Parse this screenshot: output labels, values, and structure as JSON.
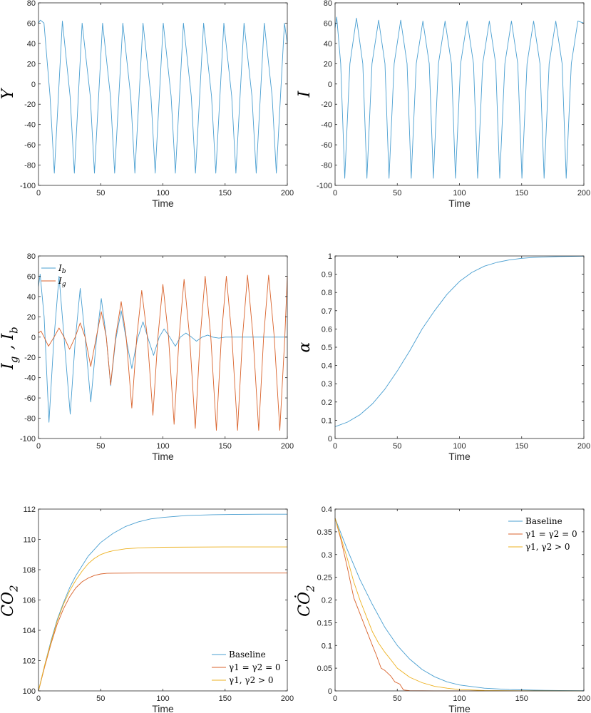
{
  "colors": {
    "blue": "#4a9fd1",
    "orange": "#d9622b",
    "yellow": "#edb120",
    "axis": "#262626"
  },
  "chart_data": [
    {
      "id": "panel-y",
      "type": "line",
      "ylabel": "Y",
      "xlabel": "Time",
      "xlim": [
        0,
        200
      ],
      "ylim": [
        -100,
        80
      ],
      "xticks": [
        0,
        50,
        100,
        150,
        200
      ],
      "yticks": [
        -100,
        -80,
        -60,
        -40,
        -20,
        0,
        20,
        40,
        60,
        80
      ],
      "grid": false,
      "series": [
        {
          "color": "blue",
          "x": [
            0,
            1.5,
            4.4,
            9.3,
            12.7,
            19.2,
            25.4,
            28.8,
            35.1,
            41.6,
            45.0,
            51.5,
            57.8,
            61.2,
            67.8,
            74.1,
            77.5,
            84.0,
            90.4,
            93.8,
            100.3,
            106.6,
            110.0,
            116.5,
            122.8,
            126.2,
            132.7,
            139.1,
            142.5,
            149.0,
            155.3,
            158.7,
            165.2,
            171.6,
            175.0,
            181.5,
            187.8,
            191.2,
            197.7,
            200
          ],
          "y": [
            60,
            63,
            60,
            -12,
            -88,
            62,
            -12,
            -88,
            60,
            -12,
            -88,
            60,
            -12,
            -88,
            60,
            -12,
            -88,
            60,
            -12,
            -88,
            60,
            -12,
            -88,
            60,
            -12,
            -88,
            60,
            -12,
            -88,
            60,
            -12,
            -88,
            60,
            -12,
            -88,
            60,
            -12,
            -88,
            60,
            40
          ]
        }
      ]
    },
    {
      "id": "panel-i",
      "type": "line",
      "ylabel": "I",
      "xlabel": "Time",
      "xlim": [
        0,
        200
      ],
      "ylim": [
        -100,
        80
      ],
      "xticks": [
        0,
        50,
        100,
        150,
        200
      ],
      "yticks": [
        -100,
        -80,
        -60,
        -40,
        -20,
        0,
        20,
        40,
        60,
        80
      ],
      "grid": false,
      "series": [
        {
          "color": "blue",
          "x": [
            0,
            1.3,
            4.5,
            7.8,
            11.9,
            17.2,
            22.3,
            25.6,
            29.7,
            35.0,
            40.1,
            43.4,
            47.5,
            52.8,
            57.9,
            61.2,
            65.3,
            70.6,
            75.7,
            79.0,
            83.1,
            88.4,
            93.5,
            96.8,
            100.9,
            106.2,
            111.3,
            114.6,
            118.7,
            124.0,
            129.1,
            132.4,
            136.5,
            141.8,
            146.9,
            150.2,
            154.3,
            159.6,
            164.7,
            168.0,
            172.1,
            177.4,
            182.5,
            185.8,
            189.9,
            195.2,
            200
          ],
          "y": [
            55,
            66,
            20,
            -93,
            20,
            65,
            20,
            -93,
            20,
            63,
            20,
            -93,
            20,
            63,
            20,
            -93,
            20,
            62,
            20,
            -93,
            20,
            62,
            20,
            -93,
            20,
            62,
            20,
            -93,
            20,
            62,
            20,
            -93,
            20,
            62,
            20,
            -93,
            20,
            62,
            20,
            -93,
            20,
            62,
            20,
            -93,
            20,
            62,
            60
          ]
        }
      ]
    },
    {
      "id": "panel-igib",
      "type": "line",
      "ylabel": "I_g , I_b",
      "xlabel": "Time",
      "xlim": [
        0,
        200
      ],
      "ylim": [
        -100,
        80
      ],
      "xticks": [
        0,
        50,
        100,
        150,
        200
      ],
      "yticks": [
        -100,
        -80,
        -60,
        -40,
        -20,
        0,
        20,
        40,
        60,
        80
      ],
      "grid": false,
      "legend": {
        "location": "top-left",
        "entries": [
          {
            "label": "I",
            "sub": "b",
            "color": "blue"
          },
          {
            "label": "I",
            "sub": "g",
            "color": "orange"
          }
        ]
      },
      "series": [
        {
          "name": "I_b",
          "color": "blue",
          "x": [
            0,
            1.3,
            4.5,
            8.4,
            12.2,
            16.5,
            20.5,
            25.5,
            29.5,
            33.5,
            37.5,
            42.0,
            46.5,
            50.5,
            54.5,
            58.0,
            62.0,
            66.5,
            70.5,
            75.0,
            79.5,
            84.0,
            88.0,
            92.5,
            97.0,
            101.0,
            105.5,
            110.0,
            114.0,
            118.5,
            123.0,
            127.0,
            131.5,
            136.0,
            140.0,
            145.0,
            150.0,
            160.0,
            180.0,
            200.0
          ],
          "y": [
            50,
            62,
            20,
            -84,
            -5,
            60,
            0,
            -76,
            -4,
            48,
            0,
            -64,
            -4,
            38,
            0,
            -48,
            -3,
            26,
            -2,
            -31,
            -2,
            15,
            -1,
            -18,
            0,
            8,
            0,
            -9,
            0,
            4,
            0,
            -4,
            0,
            2,
            0,
            -1,
            0,
            0,
            0,
            0
          ]
        },
        {
          "name": "I_g",
          "color": "orange",
          "x": [
            0,
            2.0,
            4.5,
            8.0,
            12.5,
            16.5,
            20.5,
            25.0,
            29.5,
            33.5,
            37.5,
            42.0,
            46.5,
            50.5,
            54.5,
            58.0,
            62.0,
            66.5,
            70.5,
            75.0,
            79.0,
            83.0,
            87.5,
            92.0,
            96.0,
            100.0,
            104.5,
            109.0,
            113.0,
            117.0,
            121.5,
            126.0,
            130.0,
            134.0,
            138.5,
            143.0,
            147.0,
            151.0,
            155.5,
            160.0,
            164.0,
            168.0,
            172.5,
            177.0,
            181.0,
            185.0,
            189.5,
            194.0,
            198.0,
            200.0
          ],
          "y": [
            4,
            6,
            0,
            -9,
            0,
            9,
            0,
            -12,
            0,
            14,
            0,
            -29,
            0,
            25,
            0,
            -47,
            0,
            35,
            0,
            -70,
            0,
            46,
            0,
            -77,
            0,
            52,
            0,
            -86,
            0,
            57,
            0,
            -90,
            0,
            60,
            0,
            -92,
            0,
            60,
            0,
            -92,
            0,
            61,
            0,
            -92,
            0,
            61,
            0,
            -92,
            0,
            60
          ]
        }
      ]
    },
    {
      "id": "panel-alpha",
      "type": "line",
      "ylabel": "α",
      "xlabel": "Time",
      "xlim": [
        0,
        200
      ],
      "ylim": [
        0,
        1
      ],
      "xticks": [
        0,
        50,
        100,
        150,
        200
      ],
      "yticks": [
        0,
        0.1,
        0.2,
        0.3,
        0.4,
        0.5,
        0.6,
        0.7,
        0.8,
        0.9,
        1
      ],
      "ytick_labels": [
        "0",
        "0.1",
        "0.2",
        "0.3",
        "0.4",
        "0.5",
        "0.6",
        "0.7",
        "0.8",
        "0.9",
        "1"
      ],
      "grid": false,
      "series": [
        {
          "color": "blue",
          "x": [
            0,
            10,
            20,
            30,
            40,
            50,
            60,
            70,
            80,
            90,
            100,
            110,
            120,
            130,
            140,
            150,
            160,
            170,
            180,
            190,
            200
          ],
          "y": [
            0.065,
            0.09,
            0.13,
            0.19,
            0.27,
            0.37,
            0.48,
            0.6,
            0.7,
            0.79,
            0.86,
            0.91,
            0.944,
            0.965,
            0.978,
            0.987,
            0.992,
            0.995,
            0.997,
            0.998,
            0.999
          ]
        }
      ]
    },
    {
      "id": "panel-co2",
      "type": "line",
      "ylabel": "CO_2",
      "xlabel": "Time",
      "xlim": [
        0,
        200
      ],
      "ylim": [
        100,
        112
      ],
      "xticks": [
        0,
        50,
        100,
        150,
        200
      ],
      "yticks": [
        100,
        102,
        104,
        106,
        108,
        110,
        112
      ],
      "grid": false,
      "legend": {
        "location": "bottom-right",
        "entries": [
          {
            "label": "Baseline",
            "color": "blue"
          },
          {
            "label": "γ1 = γ2 = 0",
            "color": "orange"
          },
          {
            "label": "γ1, γ2 > 0",
            "color": "yellow"
          }
        ]
      },
      "series": [
        {
          "name": "Baseline",
          "color": "blue",
          "x": [
            0,
            5,
            10,
            15,
            20,
            25,
            30,
            40,
            50,
            60,
            70,
            80,
            90,
            100,
            120,
            140,
            160,
            180,
            200
          ],
          "y": [
            100,
            101.7,
            103.3,
            104.7,
            105.8,
            106.8,
            107.6,
            108.9,
            109.8,
            110.4,
            110.85,
            111.15,
            111.35,
            111.45,
            111.58,
            111.63,
            111.65,
            111.66,
            111.66
          ]
        },
        {
          "name": "γ1 = γ2 = 0",
          "color": "orange",
          "x": [
            0,
            5,
            10,
            15,
            20,
            25,
            30,
            35,
            40,
            45,
            50,
            55,
            60,
            80,
            100,
            150,
            200
          ],
          "y": [
            100,
            101.6,
            103.1,
            104.4,
            105.4,
            106.2,
            106.8,
            107.2,
            107.45,
            107.62,
            107.72,
            107.76,
            107.77,
            107.78,
            107.78,
            107.78,
            107.78
          ]
        },
        {
          "name": "γ1, γ2 > 0",
          "color": "yellow",
          "x": [
            0,
            5,
            10,
            15,
            20,
            25,
            30,
            35,
            40,
            45,
            50,
            55,
            60,
            70,
            80,
            100,
            150,
            200
          ],
          "y": [
            100,
            101.7,
            103.2,
            104.6,
            105.7,
            106.6,
            107.3,
            107.9,
            108.4,
            108.75,
            109.0,
            109.15,
            109.25,
            109.38,
            109.43,
            109.48,
            109.5,
            109.5
          ]
        }
      ]
    },
    {
      "id": "panel-co2dot",
      "type": "line",
      "ylabel": "CȮ_2",
      "xlabel": "Time",
      "xlim": [
        0,
        200
      ],
      "ylim": [
        0,
        0.4
      ],
      "xticks": [
        0,
        50,
        100,
        150,
        200
      ],
      "yticks": [
        0,
        0.05,
        0.1,
        0.15,
        0.2,
        0.25,
        0.3,
        0.35,
        0.4
      ],
      "ytick_labels": [
        "0",
        "0.05",
        "0.1",
        "0.15",
        "0.2",
        "0.25",
        "0.3",
        "0.35",
        "0.4"
      ],
      "grid": false,
      "legend": {
        "location": "top-right",
        "entries": [
          {
            "label": "Baseline",
            "color": "blue"
          },
          {
            "label": "γ1 = γ2 = 0",
            "color": "orange"
          },
          {
            "label": "γ1, γ2 > 0",
            "color": "yellow"
          }
        ]
      },
      "series": [
        {
          "name": "Baseline",
          "color": "blue",
          "x": [
            0,
            10,
            20,
            30,
            40,
            50,
            60,
            70,
            80,
            90,
            100,
            120,
            140,
            160,
            180,
            200
          ],
          "y": [
            0.38,
            0.31,
            0.245,
            0.19,
            0.14,
            0.1,
            0.07,
            0.047,
            0.031,
            0.02,
            0.013,
            0.006,
            0.003,
            0.0015,
            0.0008,
            0.0004
          ]
        },
        {
          "name": "γ1 = γ2 = 0",
          "color": "orange",
          "x": [
            0,
            5,
            10,
            15,
            20,
            25,
            30,
            33,
            37,
            40,
            45,
            48,
            52,
            55,
            60,
            80,
            100,
            200
          ],
          "y": [
            0.38,
            0.33,
            0.27,
            0.205,
            0.17,
            0.135,
            0.1,
            0.08,
            0.05,
            0.045,
            0.032,
            0.02,
            0.015,
            0.002,
            0.0005,
            0,
            0,
            0
          ]
        },
        {
          "name": "γ1, γ2 > 0",
          "color": "yellow",
          "x": [
            0,
            5,
            10,
            15,
            20,
            25,
            30,
            35,
            40,
            45,
            50,
            55,
            60,
            70,
            80,
            90,
            100,
            120,
            150,
            200
          ],
          "y": [
            0.38,
            0.335,
            0.29,
            0.24,
            0.2,
            0.165,
            0.13,
            0.105,
            0.085,
            0.068,
            0.05,
            0.04,
            0.03,
            0.018,
            0.01,
            0.006,
            0.003,
            0.001,
            0.0003,
            0
          ]
        }
      ]
    }
  ]
}
